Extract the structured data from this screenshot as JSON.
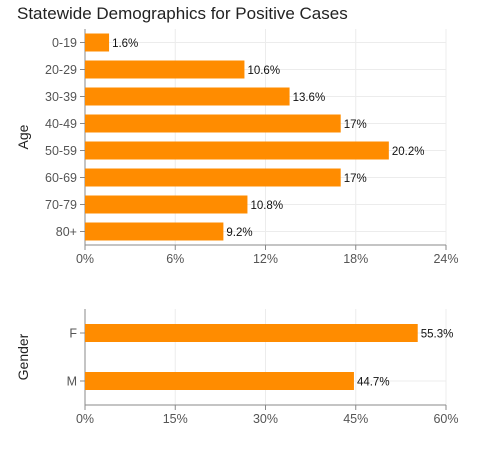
{
  "title": "Statewide Demographics for Positive Cases",
  "colors": {
    "bar": "#FF8C00",
    "grid": "#ececec",
    "axis": "#888888"
  },
  "chart_data": [
    {
      "type": "bar",
      "orientation": "horizontal",
      "ylabel": "Age",
      "categories": [
        "0-19",
        "20-29",
        "30-39",
        "40-49",
        "50-59",
        "60-69",
        "70-79",
        "80+"
      ],
      "values": [
        1.6,
        10.6,
        13.6,
        17,
        20.2,
        17,
        10.8,
        9.2
      ],
      "data_labels": [
        "1.6%",
        "10.6%",
        "13.6%",
        "17%",
        "20.2%",
        "17%",
        "10.8%",
        "9.2%"
      ],
      "xlim": [
        0,
        24
      ],
      "xticks": [
        0,
        6,
        12,
        18,
        24
      ],
      "xtick_labels": [
        "0%",
        "6%",
        "12%",
        "18%",
        "24%"
      ],
      "grid": true
    },
    {
      "type": "bar",
      "orientation": "horizontal",
      "ylabel": "Gender",
      "categories": [
        "F",
        "M"
      ],
      "values": [
        55.3,
        44.7
      ],
      "data_labels": [
        "55.3%",
        "44.7%"
      ],
      "xlim": [
        0,
        60
      ],
      "xticks": [
        0,
        15,
        30,
        45,
        60
      ],
      "xtick_labels": [
        "0%",
        "15%",
        "30%",
        "45%",
        "60%"
      ],
      "grid": true
    }
  ]
}
